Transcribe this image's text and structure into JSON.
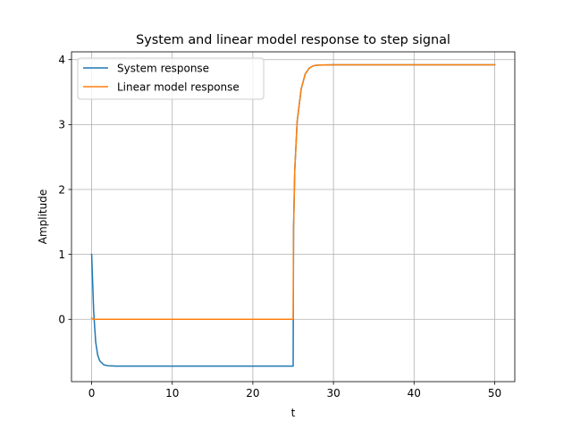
{
  "chart_data": {
    "type": "line",
    "title": "System and linear model response to step signal",
    "xlabel": "t",
    "ylabel": "Amplitude",
    "xlim": [
      -2.5,
      52.5
    ],
    "ylim": [
      -0.96,
      4.12
    ],
    "xticks": [
      0,
      10,
      20,
      30,
      40,
      50
    ],
    "yticks": [
      0,
      1,
      2,
      3,
      4
    ],
    "grid": true,
    "legend_position": "upper-left",
    "series": [
      {
        "name": "System response",
        "color": "#1f77b4",
        "points": [
          [
            0,
            1.0
          ],
          [
            0.25,
            0.12
          ],
          [
            0.5,
            -0.35
          ],
          [
            0.75,
            -0.55
          ],
          [
            1.0,
            -0.64
          ],
          [
            1.5,
            -0.7
          ],
          [
            2.0,
            -0.715
          ],
          [
            3.0,
            -0.72
          ],
          [
            10,
            -0.72
          ],
          [
            20,
            -0.72
          ],
          [
            25.0,
            -0.72
          ],
          [
            25.05,
            1.4
          ],
          [
            25.2,
            2.3
          ],
          [
            25.5,
            3.05
          ],
          [
            26.0,
            3.55
          ],
          [
            26.5,
            3.78
          ],
          [
            27.0,
            3.87
          ],
          [
            27.5,
            3.905
          ],
          [
            28.0,
            3.915
          ],
          [
            30,
            3.92
          ],
          [
            40,
            3.92
          ],
          [
            50,
            3.92
          ]
        ]
      },
      {
        "name": "Linear model response",
        "color": "#ff7f0e",
        "points": [
          [
            0,
            0.02
          ],
          [
            0.2,
            0.0
          ],
          [
            10,
            0.0
          ],
          [
            20,
            0.0
          ],
          [
            25.0,
            0.0
          ],
          [
            25.05,
            1.4
          ],
          [
            25.2,
            2.3
          ],
          [
            25.5,
            3.05
          ],
          [
            26.0,
            3.55
          ],
          [
            26.5,
            3.78
          ],
          [
            27.0,
            3.87
          ],
          [
            27.5,
            3.905
          ],
          [
            28.0,
            3.915
          ],
          [
            30,
            3.92
          ],
          [
            40,
            3.92
          ],
          [
            50,
            3.92
          ]
        ]
      }
    ]
  }
}
